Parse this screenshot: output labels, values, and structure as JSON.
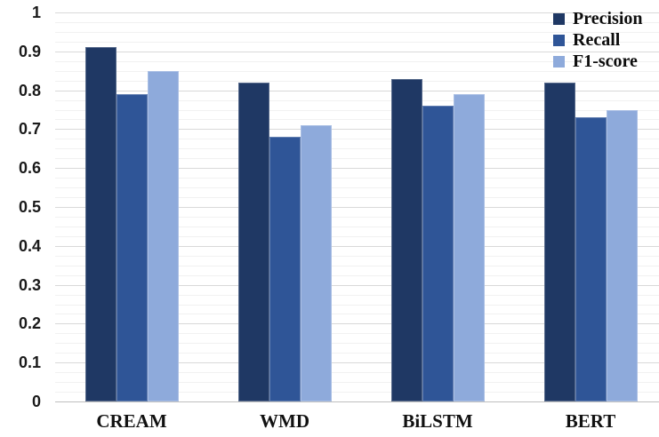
{
  "chart_data": {
    "type": "bar",
    "title": "",
    "xlabel": "",
    "ylabel": "",
    "categories": [
      "CREAM",
      "WMD",
      "BiLSTM",
      "BERT"
    ],
    "series": [
      {
        "name": "Precision",
        "color": "#1F3864",
        "values": [
          0.91,
          0.82,
          0.83,
          0.82
        ]
      },
      {
        "name": "Recall",
        "color": "#2F5597",
        "values": [
          0.79,
          0.68,
          0.76,
          0.73
        ]
      },
      {
        "name": "F1-score",
        "color": "#8EAADB",
        "values": [
          0.85,
          0.71,
          0.79,
          0.75
        ]
      }
    ],
    "ylim": [
      0,
      1
    ],
    "y_ticks": [
      0,
      0.1,
      0.2,
      0.3,
      0.4,
      0.5,
      0.6,
      0.7,
      0.8,
      0.9,
      1
    ],
    "y_tick_labels": [
      "0",
      "0.1",
      "0.2",
      "0.3",
      "0.4",
      "0.5",
      "0.6",
      "0.7",
      "0.8",
      "0.9",
      "1"
    ],
    "minor_tick_step": 0.025,
    "grid": true,
    "legend_position": "top-right",
    "gridline_major_color": "#d9d9d9",
    "gridline_minor_color": "#f1f1f1",
    "axis_line_color": "#bfbfbf",
    "background_color": "#ffffff"
  }
}
